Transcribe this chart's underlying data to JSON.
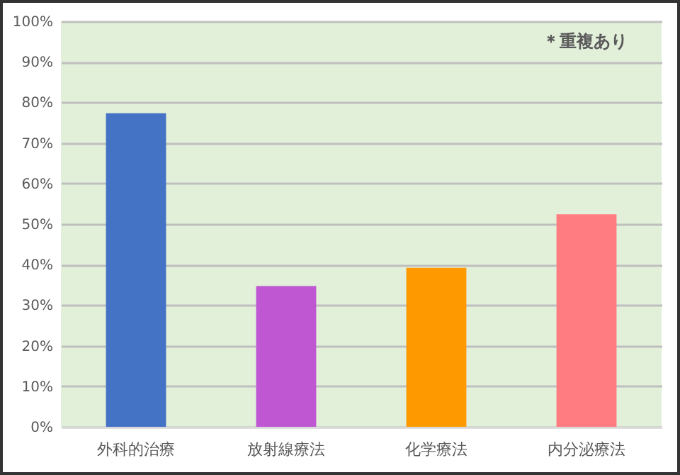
{
  "chart_data": {
    "type": "bar",
    "categories": [
      "外科的治療",
      "放射線療法",
      "化学療法",
      "内分泌療法"
    ],
    "values": [
      77.3,
      34.7,
      39.2,
      52.4
    ],
    "colors": [
      "#4472c4",
      "#bf57d3",
      "#ff9900",
      "#ff7c80"
    ],
    "ylim": [
      0,
      100
    ],
    "yticks": [
      {
        "value": 0,
        "label": "0%"
      },
      {
        "value": 10,
        "label": "10%"
      },
      {
        "value": 20,
        "label": "20%"
      },
      {
        "value": 30,
        "label": "30%"
      },
      {
        "value": 40,
        "label": "40%"
      },
      {
        "value": 50,
        "label": "50%"
      },
      {
        "value": 60,
        "label": "60%"
      },
      {
        "value": 70,
        "label": "70%"
      },
      {
        "value": 80,
        "label": "80%"
      },
      {
        "value": 90,
        "label": "90%"
      },
      {
        "value": 100,
        "label": "100%"
      }
    ],
    "grid": true,
    "annotations": [
      "＊重複あり"
    ]
  }
}
